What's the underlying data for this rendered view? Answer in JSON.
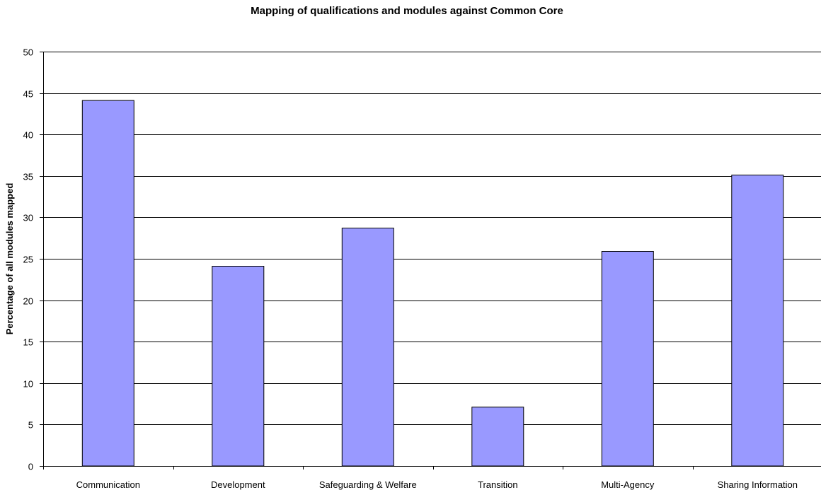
{
  "chart_data": {
    "type": "bar",
    "title": "Mapping of qualifications and modules against Common Core",
    "xlabel": "",
    "ylabel": "Percentage of all modules mapped",
    "categories": [
      "Communication",
      "Development",
      "Safeguarding & Welfare",
      "Transition",
      "Multi-Agency",
      "Sharing Information"
    ],
    "values": [
      44.1,
      24.1,
      28.7,
      7.1,
      25.9,
      35.1
    ],
    "ylim": [
      0,
      50
    ],
    "yticks": [
      0,
      5,
      10,
      15,
      20,
      25,
      30,
      35,
      40,
      45,
      50
    ],
    "grid": true,
    "legend": "none",
    "colors": {
      "bar_fill": "#9999ff",
      "bar_stroke": "#000000",
      "grid": "#000000",
      "axis": "#000000"
    }
  }
}
